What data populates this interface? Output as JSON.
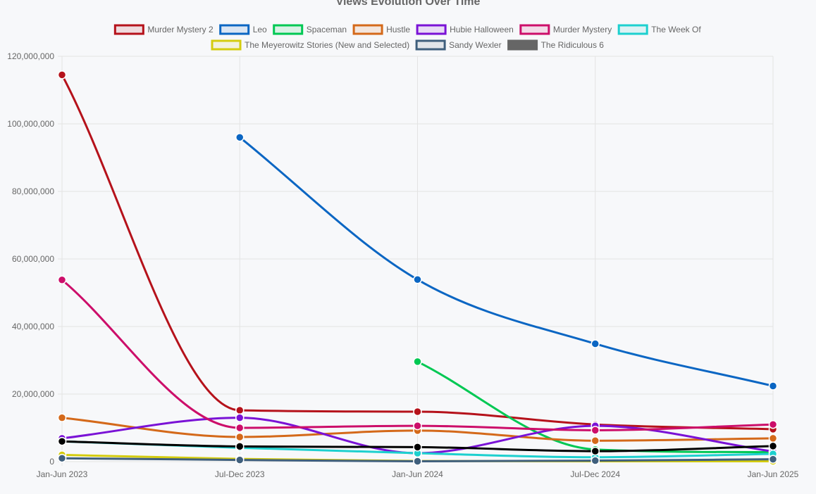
{
  "chart_data": {
    "type": "line",
    "title": "Views Evolution Over Time",
    "xlabel": "",
    "ylabel": "",
    "x": [
      "Jan-Jun 2023",
      "Jul-Dec 2023",
      "Jan-Jun 2024",
      "Jul-Dec 2024",
      "Jan-Jun 2025"
    ],
    "ylim": [
      0,
      120000000
    ],
    "yticks": [
      0,
      20000000,
      40000000,
      60000000,
      80000000,
      100000000,
      120000000
    ],
    "ytick_labels": [
      "0",
      "20,000,000",
      "40,000,000",
      "60,000,000",
      "80,000,000",
      "100,000,000",
      "120,000,000"
    ],
    "grid": true,
    "legend_position": "top",
    "series": [
      {
        "name": "Murder Mystery 2",
        "color": "#b5121b",
        "values": [
          114500000,
          15200000,
          14800000,
          11000000,
          9600000
        ]
      },
      {
        "name": "Leo",
        "color": "#0b66c3",
        "values": [
          null,
          96000000,
          53900000,
          34900000,
          22400000
        ]
      },
      {
        "name": "Spaceman",
        "color": "#00c853",
        "values": [
          null,
          null,
          29600000,
          3600000,
          2800000
        ]
      },
      {
        "name": "Hustle",
        "color": "#d4691a",
        "values": [
          13000000,
          7300000,
          9200000,
          6200000,
          6900000
        ]
      },
      {
        "name": "Hubie Halloween",
        "color": "#7a12d6",
        "values": [
          6900000,
          13000000,
          2500000,
          10600000,
          3000000
        ]
      },
      {
        "name": "Murder Mystery",
        "color": "#cc0e6a",
        "values": [
          53800000,
          10000000,
          10600000,
          9300000,
          11000000
        ]
      },
      {
        "name": "The Week Of",
        "color": "#1dd0cf",
        "values": [
          6000000,
          4100000,
          2500000,
          1300000,
          2300000
        ]
      },
      {
        "name": "The Meyerowitz Stories (New and Selected)",
        "color": "#d4cc0e",
        "values": [
          2000000,
          800000,
          200000,
          100000,
          100000
        ]
      },
      {
        "name": "Sandy Wexler",
        "color": "#3f5f7d",
        "values": [
          1000000,
          500000,
          100000,
          300000,
          700000
        ]
      },
      {
        "name": "The Ridiculous 6",
        "color": "#000000",
        "values": [
          6000000,
          4500000,
          4300000,
          3100000,
          4600000
        ]
      }
    ]
  }
}
